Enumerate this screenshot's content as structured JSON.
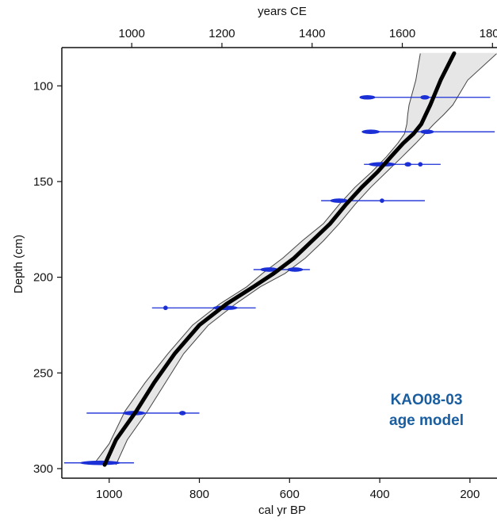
{
  "chart_data": {
    "type": "line",
    "title": "",
    "xlabel": "cal yr BP",
    "xlabel_top": "years CE",
    "ylabel": "Depth (cm)",
    "x_reversed": true,
    "xlim": [
      1105,
      140
    ],
    "ylim": [
      80,
      305
    ],
    "y_reversed": true,
    "x_ticks": [
      "1000",
      "800",
      "600",
      "400",
      "200"
    ],
    "x_tick_values": [
      1000,
      800,
      600,
      400,
      200
    ],
    "x_top_ticks": [
      "1000",
      "1200",
      "1400",
      "1600",
      "1800"
    ],
    "x_top_tick_values": [
      1000,
      1200,
      1400,
      1600,
      1800
    ],
    "y_ticks": [
      "100",
      "150",
      "200",
      "250",
      "300"
    ],
    "y_tick_values": [
      100,
      150,
      200,
      250,
      300
    ],
    "series": [
      {
        "role": "median",
        "x": [
          1010,
          985,
          940,
          900,
          855,
          800,
          740,
          680,
          635,
          590,
          550,
          510,
          475,
          440,
          405,
          375,
          348,
          325,
          308,
          298,
          288,
          265,
          235
        ],
        "y": [
          298,
          285,
          270,
          255,
          240,
          225,
          214,
          205,
          198,
          190,
          181,
          172,
          162,
          153,
          145,
          137,
          130,
          125,
          120,
          115,
          110,
          97,
          83
        ]
      },
      {
        "role": "envelope-upper",
        "x": [
          1035,
          1000,
          965,
          920,
          870,
          815,
          755,
          695,
          660,
          615,
          572,
          525,
          490,
          455,
          418,
          385,
          360,
          345,
          340,
          338,
          335,
          320,
          310
        ],
        "y": [
          298,
          287,
          270,
          255,
          240,
          225,
          214,
          205,
          198,
          190,
          181,
          172,
          162,
          153,
          145,
          137,
          130,
          125,
          120,
          115,
          110,
          97,
          83
        ]
      },
      {
        "role": "envelope-lower",
        "x": [
          985,
          960,
          915,
          875,
          835,
          780,
          720,
          665,
          610,
          565,
          525,
          490,
          455,
          420,
          385,
          350,
          320,
          300,
          280,
          258,
          238,
          205,
          140
        ],
        "y": [
          298,
          285,
          270,
          255,
          240,
          225,
          214,
          205,
          198,
          190,
          181,
          172,
          162,
          153,
          145,
          137,
          130,
          125,
          120,
          115,
          110,
          97,
          83
        ]
      }
    ],
    "dated_samples": [
      {
        "y": 106,
        "x_min": 432,
        "x_max": 155,
        "peaks": [
          [
            445,
            410
          ],
          [
            310,
            290
          ]
        ]
      },
      {
        "y": 124,
        "x_min": 430,
        "x_max": 145,
        "peaks": [
          [
            440,
            400
          ],
          [
            310,
            280
          ]
        ]
      },
      {
        "y": 141,
        "x_min": 435,
        "x_max": 265,
        "peaks": [
          [
            425,
            365
          ],
          [
            345,
            330
          ],
          [
            315,
            305
          ]
        ]
      },
      {
        "y": 160,
        "x_min": 530,
        "x_max": 300,
        "peaks": [
          [
            510,
            470
          ],
          [
            400,
            390
          ]
        ]
      },
      {
        "y": 196,
        "x_min": 680,
        "x_max": 555,
        "peaks": [
          [
            665,
            625
          ],
          [
            605,
            570
          ]
        ]
      },
      {
        "y": 216,
        "x_min": 905,
        "x_max": 675,
        "peaks": [
          [
            770,
            715
          ],
          [
            880,
            870
          ]
        ]
      },
      {
        "y": 271,
        "x_min": 1050,
        "x_max": 800,
        "peaks": [
          [
            970,
            920
          ],
          [
            845,
            830
          ]
        ]
      },
      {
        "y": 297,
        "x_min": 1100,
        "x_max": 945,
        "peaks": [
          [
            1065,
            975
          ]
        ]
      }
    ],
    "annotation": [
      "KAO08-03",
      "age model"
    ],
    "annotation_color": "#1a5ea0",
    "colors": {
      "median": "#000000",
      "envelope_fill": "#e6e6e6",
      "envelope_line": "#444444",
      "dates": "#1a2fd6"
    },
    "grid": false,
    "legend": "none"
  }
}
